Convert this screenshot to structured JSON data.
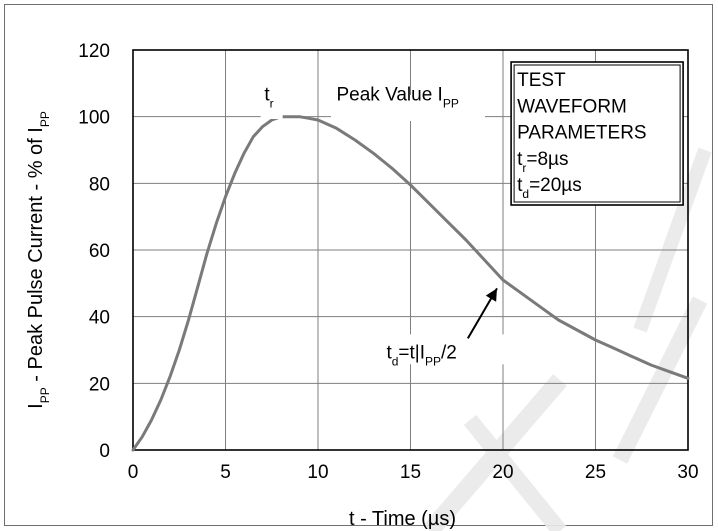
{
  "chart_data": {
    "type": "line",
    "xlabel": "t - Time (µs)",
    "ylabel": {
      "parts": [
        {
          "text": "I",
          "sub": false
        },
        {
          "text": "PP",
          "sub": true
        },
        {
          "text": " - Peak Pulse Current - % of I",
          "sub": false
        },
        {
          "text": "PP",
          "sub": true
        }
      ]
    },
    "xlim": [
      0,
      30
    ],
    "ylim": [
      0,
      120
    ],
    "xticks": [
      0,
      5,
      10,
      15,
      20,
      25,
      30
    ],
    "yticks": [
      0,
      20,
      40,
      60,
      80,
      100,
      120
    ],
    "grid": true,
    "series": [
      {
        "color": "#7a7a7a",
        "x": [
          0,
          0.5,
          1,
          1.5,
          2,
          2.5,
          3,
          3.5,
          4,
          4.5,
          5,
          5.5,
          6,
          6.5,
          7,
          7.5,
          8,
          8.5,
          9,
          9.5,
          10,
          11,
          12,
          13,
          14,
          15,
          16,
          17,
          18,
          19,
          20,
          21,
          22,
          23,
          24,
          25,
          26,
          27,
          28,
          29,
          30
        ],
        "y": [
          0,
          4,
          9,
          15,
          22,
          30,
          39,
          49,
          59,
          68,
          76,
          83,
          89,
          94,
          97,
          99,
          100,
          100,
          100,
          99.5,
          99,
          96.5,
          93,
          89,
          84.5,
          79.5,
          74,
          68.5,
          63,
          57,
          51,
          47,
          43,
          39,
          36,
          33,
          30.5,
          28,
          25.5,
          23.5,
          21.5
        ]
      }
    ],
    "annotations": {
      "tr_label": {
        "parts": [
          {
            "text": "t",
            "sub": false
          },
          {
            "text": "r",
            "sub": true
          }
        ]
      },
      "peak_label": {
        "parts": [
          {
            "text": "Peak Value I",
            "sub": false
          },
          {
            "text": "PP",
            "sub": true
          }
        ]
      },
      "td_label": {
        "parts": [
          {
            "text": "t",
            "sub": false
          },
          {
            "text": "d",
            "sub": true
          },
          {
            "text": "=t",
            "sub": false
          },
          {
            "text": "|",
            "sub": false
          },
          {
            "text": "I",
            "sub": false
          },
          {
            "text": "PP",
            "sub": true
          },
          {
            "text": "/2",
            "sub": false
          }
        ],
        "arrow_target": [
          20,
          50
        ]
      }
    },
    "legend_box": {
      "lines": [
        {
          "parts": [
            {
              "text": "TEST",
              "sub": false
            }
          ]
        },
        {
          "parts": [
            {
              "text": "WAVEFORM",
              "sub": false
            }
          ]
        },
        {
          "parts": [
            {
              "text": "PARAMETERS",
              "sub": false
            }
          ]
        },
        {
          "parts": [
            {
              "text": "t",
              "sub": false
            },
            {
              "text": "r",
              "sub": true
            },
            {
              "text": "=8µs",
              "sub": false
            }
          ]
        },
        {
          "parts": [
            {
              "text": "t",
              "sub": false
            },
            {
              "text": "d",
              "sub": true
            },
            {
              "text": "=20µs",
              "sub": false
            }
          ]
        }
      ]
    }
  }
}
